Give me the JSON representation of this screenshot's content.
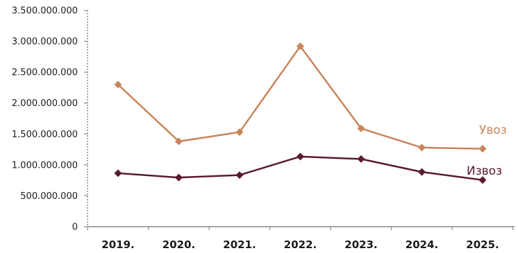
{
  "chart_data": {
    "type": "line",
    "title": "",
    "xlabel": "",
    "ylabel": "",
    "categories": [
      "2019.",
      "2020.",
      "2021.",
      "2022.",
      "2023.",
      "2024.",
      "2025."
    ],
    "ylim": [
      0,
      3500000000
    ],
    "y_ticks": [
      0,
      500000000,
      1000000000,
      1500000000,
      2000000000,
      2500000000,
      3000000000,
      3500000000
    ],
    "y_tick_labels": [
      "0",
      "500.000.000",
      "1.000.000.000",
      "1.500.000.000",
      "2.000.000.000",
      "2.500.000.000",
      "3.000.000.000",
      "3.500.000.000"
    ],
    "grid": false,
    "legend": "inline-right",
    "series": [
      {
        "name": "Увоз",
        "color": "#c9855a",
        "marker": "diamond",
        "values": [
          2300000000,
          1380000000,
          1530000000,
          2920000000,
          1590000000,
          1280000000,
          1260000000
        ]
      },
      {
        "name": "Извоз",
        "color": "#5a1a2e",
        "marker": "diamond",
        "values": [
          865000000,
          795000000,
          835000000,
          1135000000,
          1095000000,
          885000000,
          755000000
        ]
      }
    ]
  }
}
